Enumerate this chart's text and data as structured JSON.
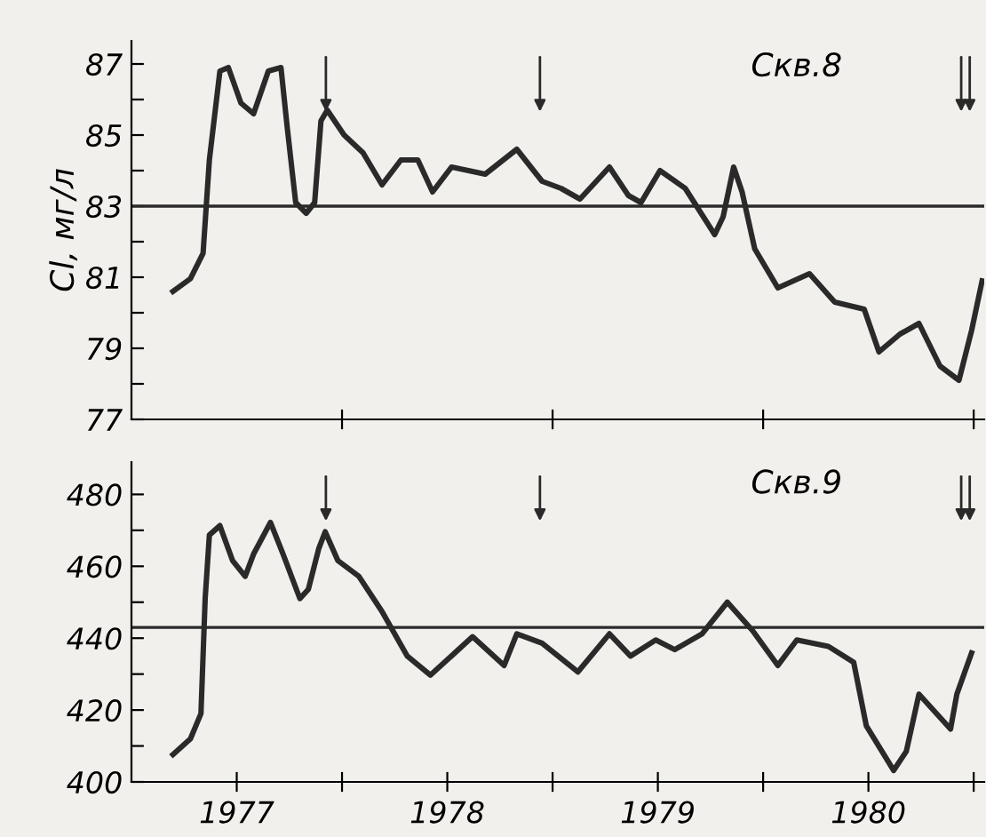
{
  "chart_data": [
    {
      "type": "line",
      "ylabel": "Cl, мг/л",
      "annotations": [
        "Скв.8"
      ],
      "series": [
        {
          "color": "#2a2a2a",
          "x": [
            1977.197,
            1977.28,
            1977.34,
            1977.37,
            1977.42,
            1977.46,
            1977.52,
            1977.58,
            1977.65,
            1977.71,
            1977.74,
            1977.78,
            1977.83,
            1977.87,
            1977.9,
            1977.93,
            1978.01,
            1978.1,
            1978.19,
            1978.28,
            1978.36,
            1978.43,
            1978.52,
            1978.68,
            1978.83,
            1978.95,
            1979.04,
            1979.13,
            1979.27,
            1979.36,
            1979.42,
            1979.51,
            1979.63,
            1979.77,
            1979.81,
            1979.86,
            1979.9,
            1979.96,
            1980.07,
            1980.22,
            1980.34,
            1980.48,
            1980.55,
            1980.65,
            1980.74,
            1980.84,
            1980.93,
            1980.99,
            1981.04
          ],
          "values": [
            80.6,
            80.96,
            81.67,
            84.3,
            86.8,
            86.9,
            85.9,
            85.6,
            86.8,
            86.9,
            85.2,
            83.1,
            82.8,
            83.1,
            85.4,
            85.7,
            85.0,
            84.5,
            83.6,
            84.3,
            84.3,
            83.4,
            84.1,
            83.9,
            84.6,
            83.7,
            83.5,
            83.2,
            84.1,
            83.3,
            83.1,
            84.0,
            83.5,
            82.2,
            82.7,
            84.1,
            83.4,
            81.8,
            80.7,
            81.1,
            80.3,
            80.1,
            78.9,
            79.4,
            79.7,
            78.5,
            78.1,
            79.5,
            80.9
          ]
        }
      ],
      "ref_lines": [
        {
          "axis": "y",
          "value": 83,
          "color": "#2a2a2a"
        }
      ],
      "xlim": [
        1977,
        1981.05
      ],
      "ylim": [
        77,
        87.65
      ],
      "xticks": [
        1978,
        1979,
        1980,
        1981
      ],
      "yticks": [
        77,
        {
          "value": 78,
          "label": null
        },
        79,
        {
          "value": 80,
          "label": null
        },
        81,
        {
          "value": 82,
          "label": null
        },
        83,
        {
          "value": 84,
          "label": null
        },
        85,
        {
          "value": 86,
          "label": null
        },
        87
      ],
      "tick_labels": "y",
      "grid": false,
      "legend": false
    },
    {
      "type": "line",
      "annotations": [
        "Скв.9"
      ],
      "series": [
        {
          "color": "#2a2a2a",
          "x": [
            1977.197,
            1977.28,
            1977.33,
            1977.35,
            1977.37,
            1977.42,
            1977.48,
            1977.54,
            1977.58,
            1977.66,
            1977.72,
            1977.8,
            1977.84,
            1977.89,
            1977.92,
            1977.98,
            1978.08,
            1978.19,
            1978.31,
            1978.42,
            1978.62,
            1978.77,
            1978.83,
            1978.95,
            1979.12,
            1979.27,
            1979.37,
            1979.49,
            1979.58,
            1979.71,
            1979.83,
            1979.95,
            1980.07,
            1980.16,
            1980.31,
            1980.43,
            1980.49,
            1980.62,
            1980.68,
            1980.74,
            1980.89,
            1980.92,
            1980.99
          ],
          "values": [
            407.6,
            412,
            419,
            451,
            468.7,
            471.3,
            461.6,
            457.2,
            463.4,
            472.2,
            463.4,
            451,
            453.6,
            465,
            469.6,
            461.6,
            457.2,
            447.4,
            435,
            429.7,
            440.4,
            432.4,
            441.2,
            438.6,
            430.6,
            441.2,
            435,
            439.5,
            436.8,
            441.2,
            450,
            442.1,
            432.4,
            439.5,
            437.7,
            433.3,
            415.6,
            403.2,
            408.5,
            424.4,
            414.7,
            424.4,
            435.9
          ]
        }
      ],
      "ref_lines": [
        {
          "axis": "y",
          "value": 443,
          "color": "#2a2a2a"
        }
      ],
      "xlim": [
        1977,
        1981.05
      ],
      "ylim": [
        400,
        489
      ],
      "xticks": [
        {
          "value": 1977.5,
          "label": "1977"
        },
        {
          "value": 1978,
          "label": null
        },
        {
          "value": 1978.5,
          "label": "1978"
        },
        {
          "value": 1979,
          "label": null
        },
        {
          "value": 1979.5,
          "label": "1979"
        },
        {
          "value": 1980,
          "label": null
        },
        {
          "value": 1980.5,
          "label": "1980"
        },
        {
          "value": 1981,
          "label": null
        }
      ],
      "yticks": [
        400,
        {
          "value": 410,
          "label": null
        },
        420,
        {
          "value": 430,
          "label": null
        },
        440,
        {
          "value": 450,
          "label": null
        },
        460,
        {
          "value": 470,
          "label": null
        },
        480
      ],
      "grid": false,
      "legend": false
    }
  ]
}
